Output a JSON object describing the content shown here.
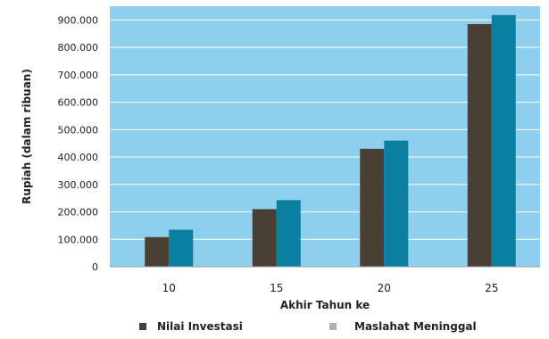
{
  "chart_data": {
    "type": "bar",
    "title": "",
    "xlabel": "Akhir Tahun ke",
    "ylabel": "Rupiah (dalam ribuan)",
    "categories": [
      "10",
      "15",
      "20",
      "25"
    ],
    "series": [
      {
        "name": "Nilai Investasi",
        "values": [
          108000,
          210000,
          430000,
          885000
        ]
      },
      {
        "name": "Maslahat Meninggal",
        "values": [
          135000,
          243000,
          460000,
          918000
        ]
      }
    ],
    "ylim": [
      0,
      950000
    ],
    "yticks": [
      0,
      100000,
      200000,
      300000,
      400000,
      500000,
      600000,
      700000,
      800000,
      900000
    ],
    "ytick_labels": [
      "0",
      "100.000",
      "200.000",
      "300.000",
      "400.000",
      "500.000",
      "600.000",
      "700.000",
      "800.000",
      "900.000"
    ],
    "grid": true,
    "legend_position": "bottom",
    "colors": {
      "plot_background": "#8ecfee",
      "grid": "#ffffff",
      "series": [
        "#4a3f34",
        "#0a7f9f"
      ],
      "legend_markers": [
        "#4a3f34",
        "#b0b0b0"
      ]
    }
  }
}
